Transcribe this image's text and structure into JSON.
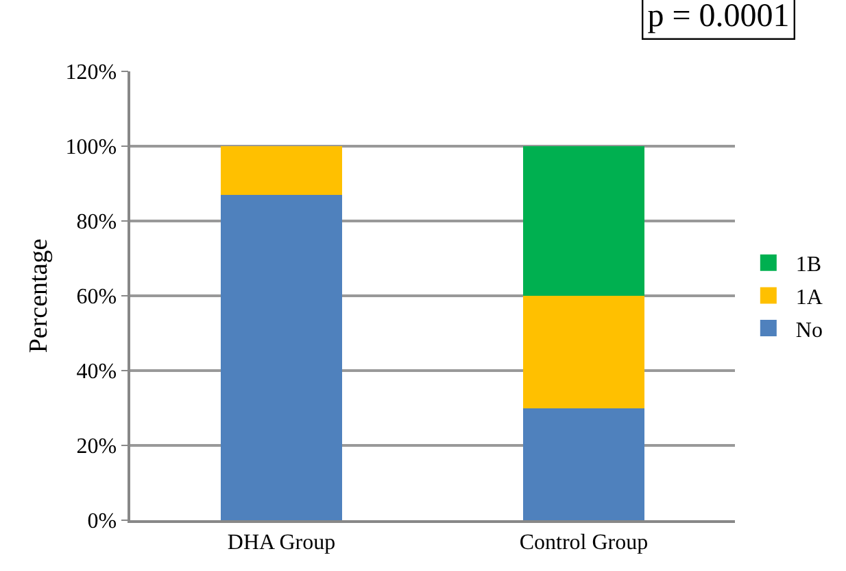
{
  "chart_data": {
    "type": "bar",
    "stacked": true,
    "ylabel": "Percentage",
    "annotations": [
      "p = 0.0001"
    ],
    "categories": [
      "DHA Group",
      "Control Group"
    ],
    "series": [
      {
        "name": "No",
        "color": "#4f81bd",
        "values": [
          87,
          30
        ]
      },
      {
        "name": "1A",
        "color": "#ffc000",
        "values": [
          13,
          30
        ]
      },
      {
        "name": "1B",
        "color": "#00b050",
        "values": [
          null,
          40
        ]
      }
    ],
    "ylim": [
      0,
      120
    ],
    "yticks": [
      {
        "value": 0,
        "label": "0%"
      },
      {
        "value": 20,
        "label": "20%"
      },
      {
        "value": 40,
        "label": "40%"
      },
      {
        "value": 60,
        "label": "60%"
      },
      {
        "value": 80,
        "label": "80%"
      },
      {
        "value": 100,
        "label": "100%"
      },
      {
        "value": 120,
        "label": "120%"
      }
    ],
    "grid": "y",
    "legend": "right"
  }
}
